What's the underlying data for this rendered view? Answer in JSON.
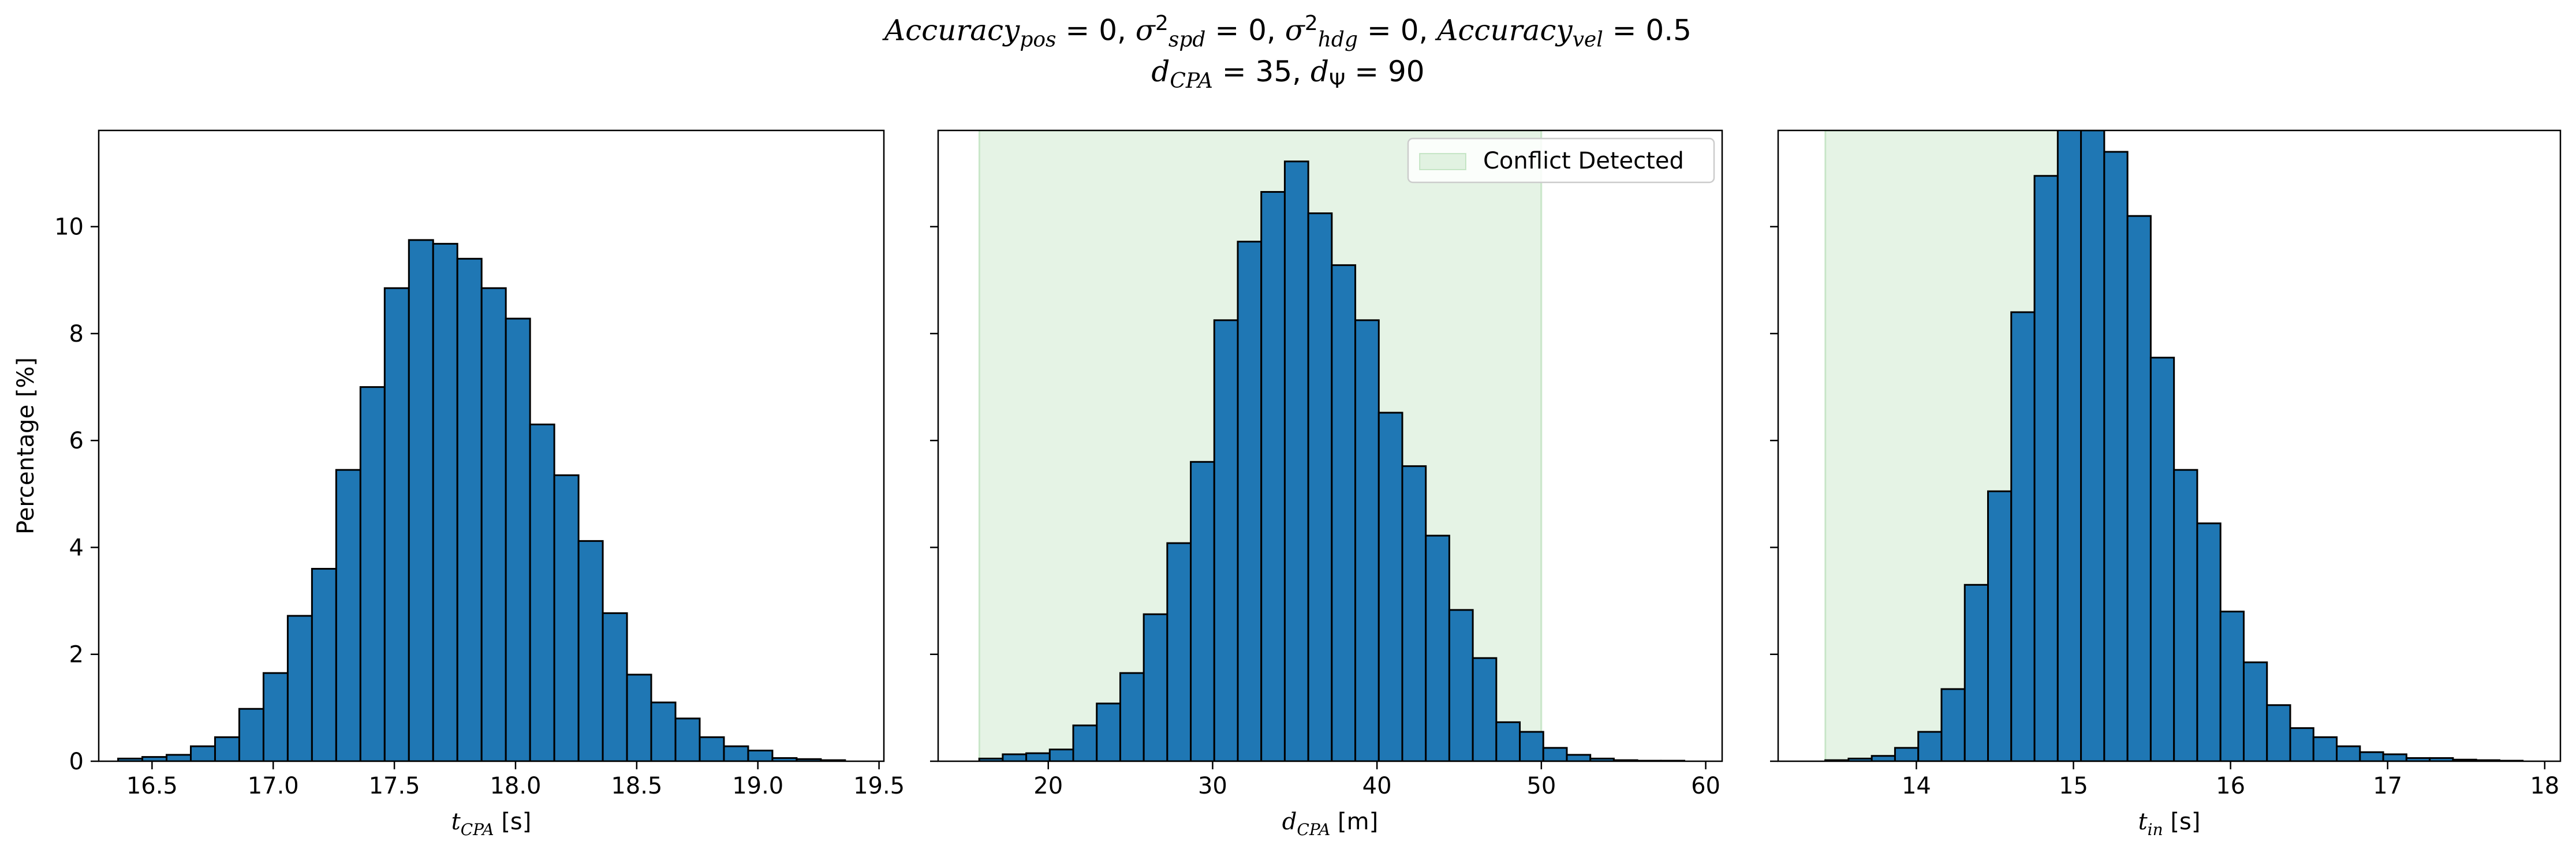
{
  "figure": {
    "title_line1_html": "<i>Accuracy</i><sub><i>pos</i></sub> = 0, <i>σ</i><sup>2</sup><sub><i>spd</i></sub> = 0, <i>σ</i><sup>2</sup><sub><i>hdg</i></sub> = 0, <i>Accuracy</i><sub><i>vel</i></sub> = 0.5",
    "title_line2_html": "<i>d</i><sub><i>CPA</i></sub> = 35, <i>d</i><sub>Ψ</sub> = 90",
    "ylabel": "Percentage [%]"
  },
  "chart_data": [
    {
      "type": "histogram",
      "xlabel_main": "t",
      "xlabel_sub": "CPA",
      "xlabel_unit": "[s]",
      "xlim": [
        16.28,
        19.52
      ],
      "ylim": [
        0,
        11.8
      ],
      "xticks": [
        "16.5",
        "17.0",
        "17.5",
        "18.0",
        "18.5",
        "19.0",
        "19.5"
      ],
      "yticks": [
        "0",
        "2",
        "4",
        "6",
        "8",
        "10"
      ],
      "bin_start": 16.36,
      "bin_width": 0.1,
      "values": [
        0.05,
        0.08,
        0.12,
        0.28,
        0.45,
        0.98,
        1.65,
        2.72,
        3.6,
        5.45,
        7.0,
        8.85,
        9.75,
        9.68,
        9.4,
        8.85,
        8.28,
        6.3,
        5.35,
        4.12,
        2.77,
        1.62,
        1.1,
        0.8,
        0.45,
        0.28,
        0.2,
        0.06,
        0.04,
        0.02
      ],
      "shaded": null,
      "legend": null,
      "show_ytick_labels": true
    },
    {
      "type": "histogram",
      "xlabel_main": "d",
      "xlabel_sub": "CPA",
      "xlabel_unit": "[m]",
      "xlim": [
        13.3,
        61.0
      ],
      "ylim": [
        0,
        11.8
      ],
      "xticks": [
        "20",
        "30",
        "40",
        "50",
        "60"
      ],
      "yticks": [
        "0",
        "2",
        "4",
        "6",
        "8",
        "10"
      ],
      "bin_start": 15.8,
      "bin_width": 1.43,
      "values": [
        0.05,
        0.13,
        0.15,
        0.22,
        0.67,
        1.08,
        1.65,
        2.75,
        4.08,
        5.6,
        8.25,
        9.72,
        10.65,
        11.22,
        10.25,
        9.28,
        8.25,
        6.52,
        5.52,
        4.22,
        2.83,
        1.93,
        0.73,
        0.55,
        0.25,
        0.12,
        0.05,
        0.02,
        0.01,
        0.01
      ],
      "shaded": [
        15.8,
        50.0
      ],
      "legend": "Conflict Detected",
      "show_ytick_labels": false
    },
    {
      "type": "histogram",
      "xlabel_main": "t",
      "xlabel_sub": "in",
      "xlabel_unit": "[s]",
      "xlim": [
        13.12,
        18.1
      ],
      "ylim": [
        0,
        11.8
      ],
      "xticks": [
        "14",
        "15",
        "16",
        "17",
        "18"
      ],
      "yticks": [
        "0",
        "2",
        "4",
        "6",
        "8",
        "10"
      ],
      "bin_start": 13.42,
      "bin_width": 0.148,
      "values": [
        0.02,
        0.05,
        0.1,
        0.25,
        0.55,
        1.35,
        3.3,
        5.05,
        8.4,
        10.95,
        11.9,
        11.8,
        11.4,
        10.2,
        7.55,
        5.45,
        4.45,
        2.8,
        1.85,
        1.05,
        0.62,
        0.45,
        0.28,
        0.17,
        0.13,
        0.06,
        0.06,
        0.03,
        0.02,
        0.01
      ],
      "shaded": [
        13.42,
        15.1
      ],
      "legend": null,
      "show_ytick_labels": false
    }
  ]
}
